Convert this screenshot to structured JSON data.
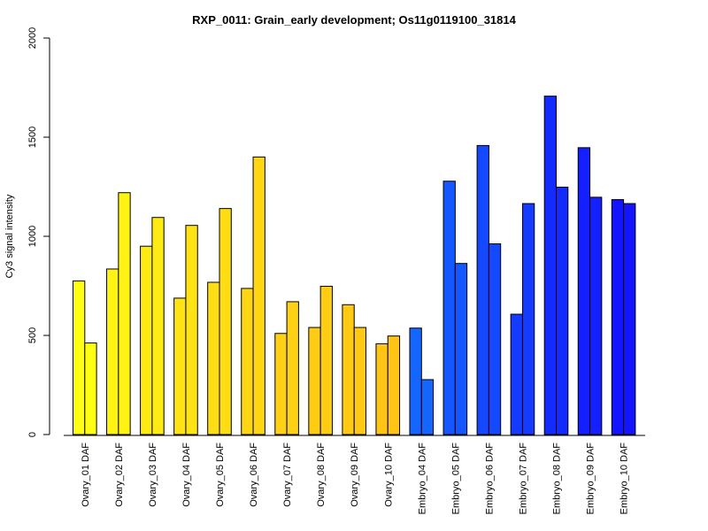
{
  "chart_data": {
    "type": "bar",
    "title": "RXP_0011: Grain_early development; Os11g0119100_31814",
    "xlabel": "",
    "ylabel": "Cy3 signal intensity",
    "ylim": [
      0,
      2000
    ],
    "yticks": [
      0,
      500,
      1000,
      1500,
      2000
    ],
    "grid": false,
    "legend": "none",
    "categories": [
      "Ovary_01 DAF",
      "Ovary_02 DAF",
      "Ovary_03 DAF",
      "Ovary_04 DAF",
      "Ovary_05 DAF",
      "Ovary_06 DAF",
      "Ovary_07 DAF",
      "Ovary_08 DAF",
      "Ovary_09 DAF",
      "Ovary_10 DAF",
      "Embryo_04 DAF",
      "Embryo_05 DAF",
      "Embryo_06 DAF",
      "Embryo_07 DAF",
      "Embryo_08 DAF",
      "Embryo_09 DAF",
      "Embryo_10 DAF"
    ],
    "series": [
      {
        "values": [
          775,
          835,
          950,
          688,
          768,
          737,
          510,
          540,
          655,
          458,
          537,
          1278,
          1458,
          607,
          1707,
          1447,
          1185
        ]
      },
      {
        "values": [
          462,
          1220,
          1095,
          1055,
          1140,
          1400,
          670,
          748,
          540,
          497,
          277,
          863,
          962,
          1165,
          1248,
          1197,
          1165
        ]
      }
    ],
    "colors": [
      "#FFFF14",
      "#FFF314",
      "#FFEB14",
      "#FFE314",
      "#FFDD14",
      "#FFD614",
      "#FFD114",
      "#FFCC14",
      "#FFC914",
      "#FFC414",
      "#1466FF",
      "#1457FF",
      "#1449FF",
      "#143BFF",
      "#142BFF",
      "#1420FF",
      "#1414FF"
    ]
  }
}
